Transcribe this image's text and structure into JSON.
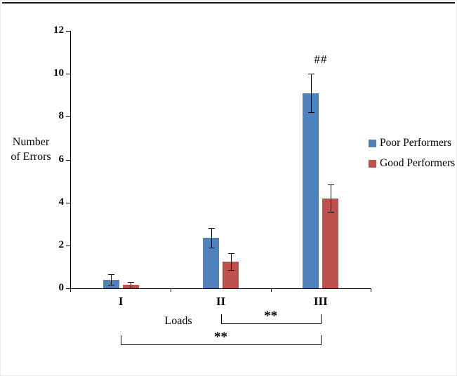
{
  "chart_data": {
    "type": "bar",
    "title": "",
    "ylabel": "Number of Errors",
    "xlabel": "Loads",
    "categories": [
      "I",
      "II",
      "III"
    ],
    "series": [
      {
        "name": "Poor Performers",
        "color": "#4f81bd",
        "values": [
          0.4,
          2.35,
          9.1
        ],
        "error_bars": [
          0.25,
          0.45,
          0.9
        ]
      },
      {
        "name": "Good Performers",
        "color": "#c0504d",
        "values": [
          0.15,
          1.25,
          4.2
        ],
        "error_bars": [
          0.15,
          0.4,
          0.65
        ]
      }
    ],
    "ylim": [
      0,
      12
    ],
    "yticks": [
      0,
      2,
      4,
      6,
      8,
      10,
      12
    ],
    "grid": false,
    "legend_position": "right",
    "annotations": [
      {
        "text": "##",
        "category": "III",
        "series": "Poor Performers",
        "position": "above-error-bar"
      }
    ],
    "significance_brackets": [
      {
        "from": "II",
        "to": "III",
        "label": "**"
      },
      {
        "from": "I",
        "to": "III",
        "label": "**"
      }
    ]
  }
}
